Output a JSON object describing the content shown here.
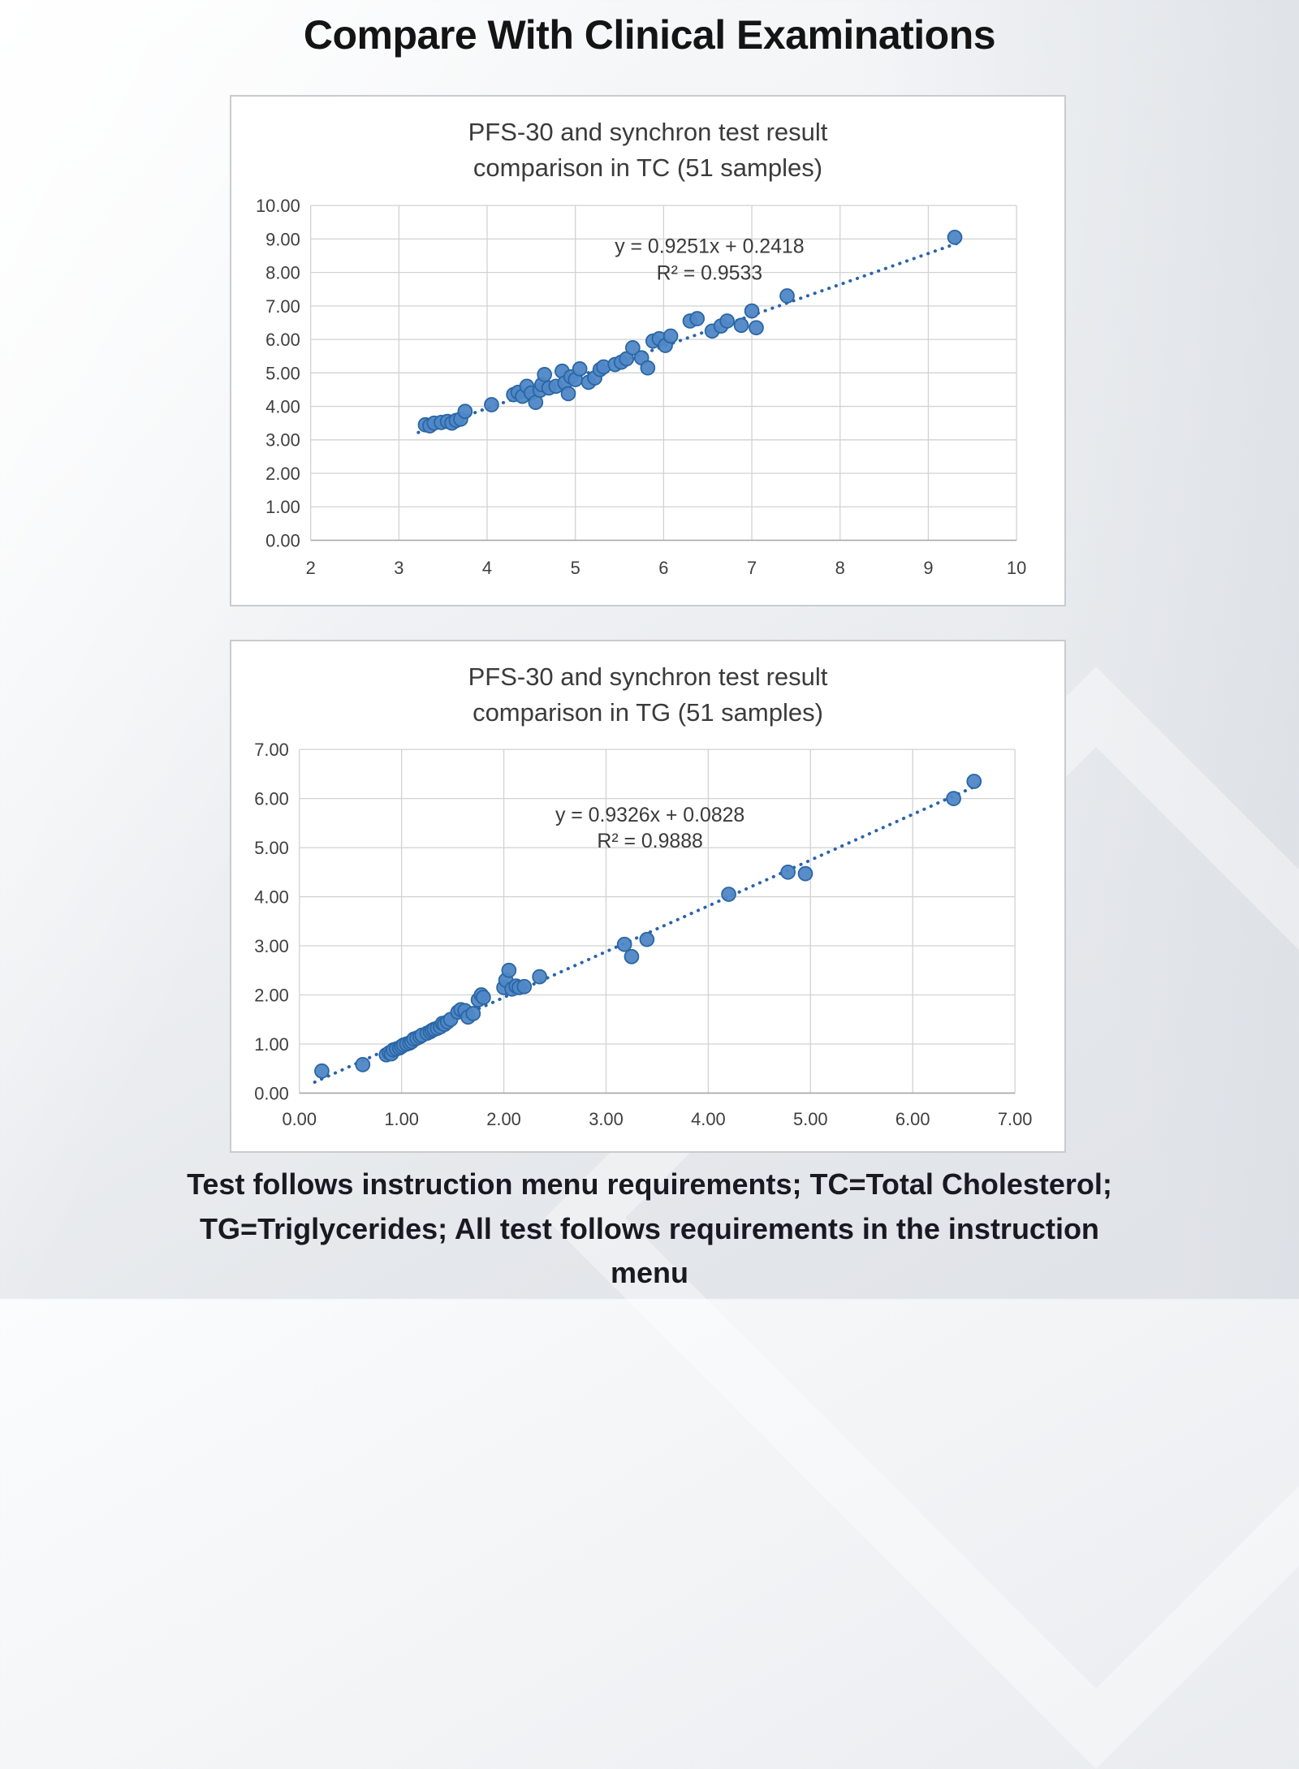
{
  "page": {
    "title": "Compare With Clinical Examinations",
    "caption": "Test follows instruction menu requirements; TC=Total Cholesterol; TG=Triglycerides; All test follows requirements in the instruction menu"
  },
  "colors": {
    "marker_fill": "#4f87c7",
    "marker_border": "#2a66a3",
    "trendline": "#2b63ad",
    "gridline": "#d2d2d2",
    "axis_line": "#a8a8a8",
    "tick_label": "#3f3f3f",
    "annotation_text": "#3a3a3a"
  },
  "chart_data": [
    {
      "type": "scatter",
      "title": "PFS-30 and synchron test result comparison in TC (51 samples)",
      "xlabel": "",
      "ylabel": "",
      "xlim": [
        2,
        10
      ],
      "ylim": [
        0,
        10
      ],
      "grid": true,
      "legend": "none",
      "x_ticks": [
        "2",
        "3",
        "4",
        "5",
        "6",
        "7",
        "8",
        "9",
        "10"
      ],
      "y_ticks": [
        "0.00",
        "1.00",
        "2.00",
        "3.00",
        "4.00",
        "5.00",
        "6.00",
        "7.00",
        "8.00",
        "9.00",
        "10.00"
      ],
      "annotation": {
        "line1": "y = 0.9251x + 0.2418",
        "line2": "R² = 0.9533",
        "x_frac": 0.565,
        "y1_frac": 0.142,
        "y2_frac": 0.222
      },
      "trendline": {
        "slope": 0.9251,
        "intercept": 0.2418,
        "x_start": 3.22,
        "x_end": 9.38,
        "style": "dotted"
      },
      "series": [
        {
          "name": "TC samples",
          "points": [
            [
              3.3,
              3.45
            ],
            [
              3.35,
              3.42
            ],
            [
              3.4,
              3.5
            ],
            [
              3.48,
              3.52
            ],
            [
              3.55,
              3.55
            ],
            [
              3.6,
              3.5
            ],
            [
              3.65,
              3.58
            ],
            [
              3.7,
              3.62
            ],
            [
              3.75,
              3.85
            ],
            [
              4.05,
              4.05
            ],
            [
              4.3,
              4.35
            ],
            [
              4.35,
              4.42
            ],
            [
              4.4,
              4.3
            ],
            [
              4.45,
              4.6
            ],
            [
              4.5,
              4.4
            ],
            [
              4.55,
              4.12
            ],
            [
              4.6,
              4.48
            ],
            [
              4.62,
              4.65
            ],
            [
              4.65,
              4.95
            ],
            [
              4.7,
              4.55
            ],
            [
              4.78,
              4.6
            ],
            [
              4.85,
              5.05
            ],
            [
              4.88,
              4.7
            ],
            [
              4.92,
              4.38
            ],
            [
              4.95,
              4.88
            ],
            [
              5.0,
              4.8
            ],
            [
              5.05,
              5.12
            ],
            [
              5.15,
              4.72
            ],
            [
              5.22,
              4.85
            ],
            [
              5.28,
              5.1
            ],
            [
              5.32,
              5.18
            ],
            [
              5.45,
              5.25
            ],
            [
              5.52,
              5.32
            ],
            [
              5.58,
              5.42
            ],
            [
              5.65,
              5.75
            ],
            [
              5.75,
              5.45
            ],
            [
              5.82,
              5.15
            ],
            [
              5.88,
              5.95
            ],
            [
              5.95,
              6.02
            ],
            [
              6.02,
              5.82
            ],
            [
              6.08,
              6.1
            ],
            [
              6.3,
              6.55
            ],
            [
              6.38,
              6.62
            ],
            [
              6.55,
              6.25
            ],
            [
              6.65,
              6.4
            ],
            [
              6.72,
              6.55
            ],
            [
              6.88,
              6.42
            ],
            [
              7.0,
              6.85
            ],
            [
              7.05,
              6.35
            ],
            [
              7.4,
              7.3
            ],
            [
              9.3,
              9.05
            ]
          ]
        }
      ]
    },
    {
      "type": "scatter",
      "title": "PFS-30 and synchron test result comparison in TG (51 samples)",
      "xlabel": "",
      "ylabel": "",
      "xlim": [
        0,
        7
      ],
      "ylim": [
        0,
        7
      ],
      "grid": true,
      "legend": "none",
      "x_ticks": [
        "0.00",
        "1.00",
        "2.00",
        "3.00",
        "4.00",
        "5.00",
        "6.00",
        "7.00"
      ],
      "y_ticks": [
        "0.00",
        "1.00",
        "2.00",
        "3.00",
        "4.00",
        "5.00",
        "6.00",
        "7.00"
      ],
      "annotation": {
        "line1": "y = 0.9326x + 0.0828",
        "line2": "R² = 0.9888",
        "x_frac": 0.49,
        "y1_frac": 0.21,
        "y2_frac": 0.285
      },
      "trendline": {
        "slope": 0.9326,
        "intercept": 0.0828,
        "x_start": 0.15,
        "x_end": 6.68,
        "style": "dotted"
      },
      "series": [
        {
          "name": "TG samples",
          "points": [
            [
              0.22,
              0.45
            ],
            [
              0.62,
              0.58
            ],
            [
              0.85,
              0.78
            ],
            [
              0.88,
              0.82
            ],
            [
              0.9,
              0.8
            ],
            [
              0.92,
              0.88
            ],
            [
              0.95,
              0.9
            ],
            [
              0.98,
              0.92
            ],
            [
              1.0,
              0.95
            ],
            [
              1.02,
              0.98
            ],
            [
              1.05,
              1.0
            ],
            [
              1.08,
              1.02
            ],
            [
              1.1,
              1.05
            ],
            [
              1.12,
              1.1
            ],
            [
              1.15,
              1.12
            ],
            [
              1.18,
              1.15
            ],
            [
              1.2,
              1.18
            ],
            [
              1.25,
              1.22
            ],
            [
              1.28,
              1.25
            ],
            [
              1.3,
              1.28
            ],
            [
              1.32,
              1.3
            ],
            [
              1.35,
              1.32
            ],
            [
              1.38,
              1.35
            ],
            [
              1.4,
              1.42
            ],
            [
              1.42,
              1.4
            ],
            [
              1.45,
              1.45
            ],
            [
              1.48,
              1.5
            ],
            [
              1.55,
              1.65
            ],
            [
              1.58,
              1.7
            ],
            [
              1.62,
              1.68
            ],
            [
              1.65,
              1.55
            ],
            [
              1.7,
              1.62
            ],
            [
              1.75,
              1.9
            ],
            [
              1.78,
              2.0
            ],
            [
              1.8,
              1.95
            ],
            [
              2.0,
              2.15
            ],
            [
              2.02,
              2.3
            ],
            [
              2.05,
              2.5
            ],
            [
              2.08,
              2.12
            ],
            [
              2.12,
              2.18
            ],
            [
              2.15,
              2.15
            ],
            [
              2.2,
              2.17
            ],
            [
              2.35,
              2.37
            ],
            [
              3.18,
              3.03
            ],
            [
              3.25,
              2.78
            ],
            [
              3.4,
              3.13
            ],
            [
              4.2,
              4.05
            ],
            [
              4.78,
              4.5
            ],
            [
              4.95,
              4.47
            ],
            [
              6.4,
              6.0
            ],
            [
              6.6,
              6.35
            ]
          ]
        }
      ]
    }
  ]
}
